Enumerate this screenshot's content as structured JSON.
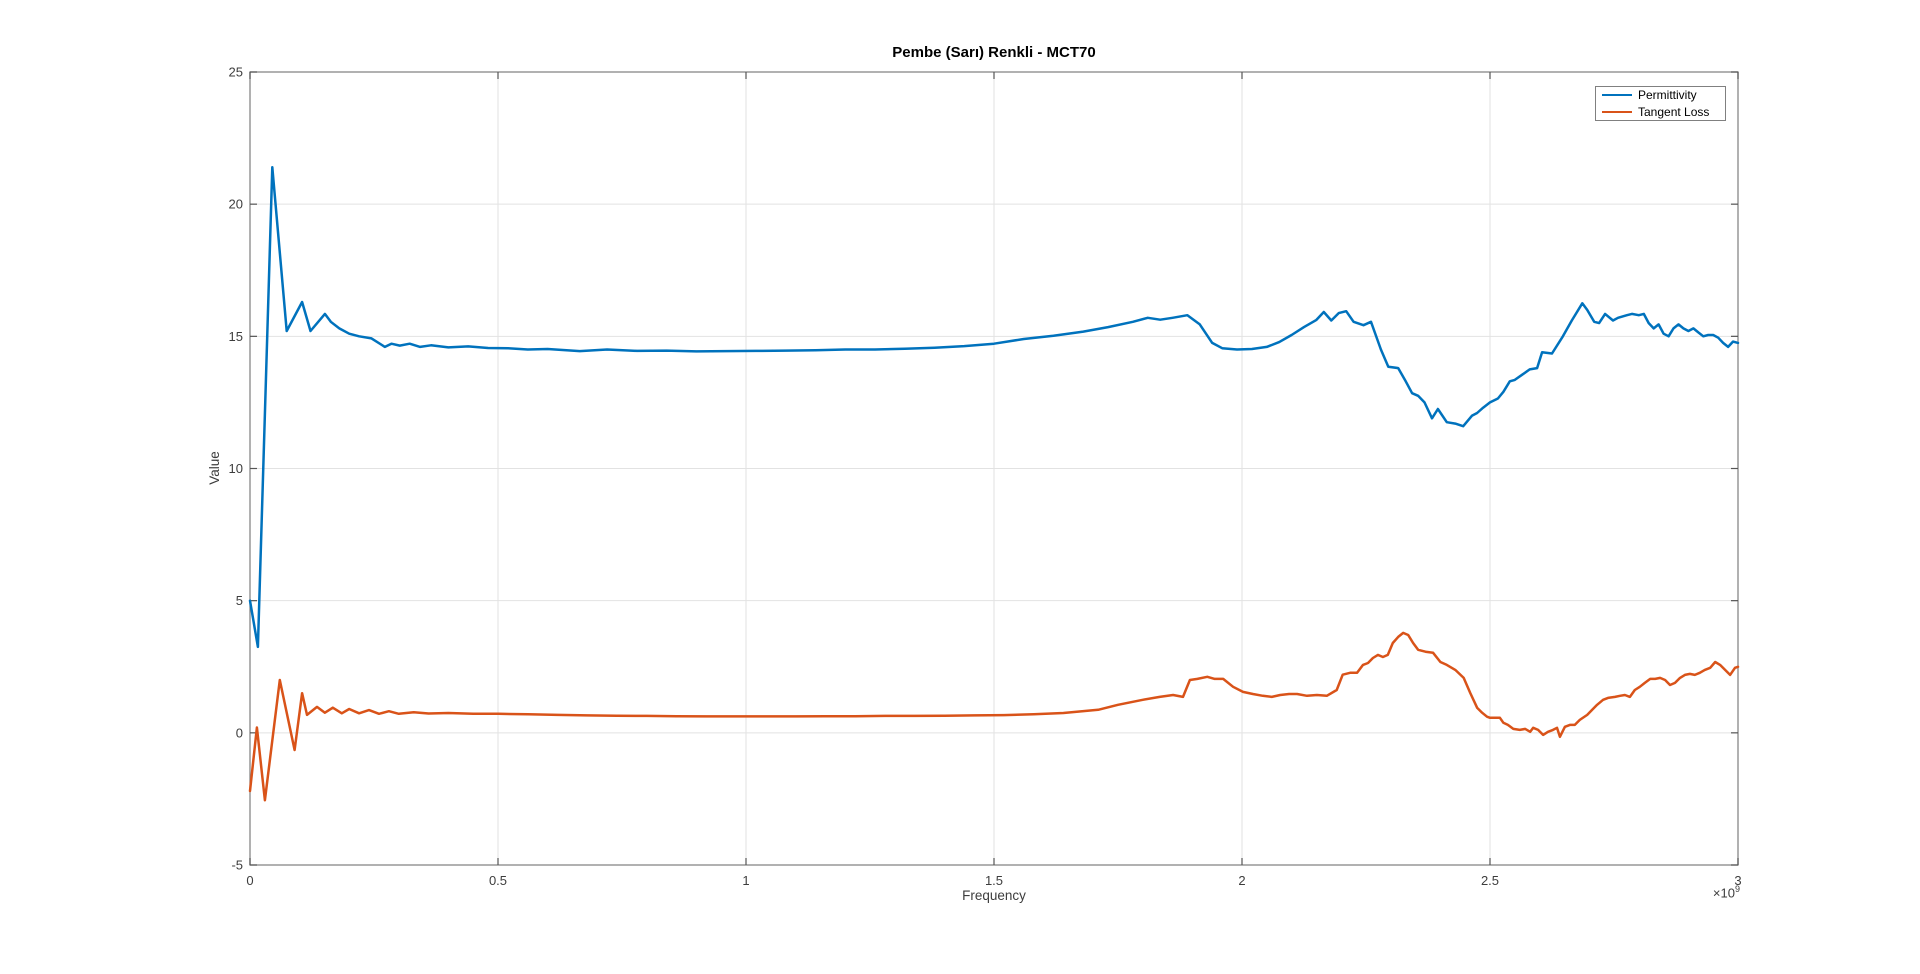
{
  "chart_data": {
    "type": "line",
    "title": "Pembe (Sarı) Renkli - MCT70",
    "xlabel": "Frequency",
    "ylabel": "Value",
    "x_offset": {
      "text": "×10",
      "exp": "9"
    },
    "xlim": [
      0,
      3
    ],
    "ylim": [
      -5,
      25
    ],
    "grid": true,
    "legend_position": "northeast",
    "x_ticks": {
      "values": [
        0,
        0.5,
        1,
        1.5,
        2,
        2.5,
        3
      ],
      "labels": [
        "0",
        "0.5",
        "1",
        "1.5",
        "2",
        "2.5",
        "3"
      ]
    },
    "y_ticks": {
      "values": [
        -5,
        0,
        5,
        10,
        15,
        20,
        25
      ],
      "labels": [
        "-5",
        "0",
        "5",
        "10",
        "15",
        "20",
        "25"
      ]
    },
    "series": [
      {
        "name": "Permittivity",
        "color": "#0072BD",
        "points": [
          [
            0.0,
            5.0
          ],
          [
            0.016,
            3.25
          ],
          [
            0.045,
            21.4
          ],
          [
            0.074,
            15.2
          ],
          [
            0.105,
            16.3
          ],
          [
            0.122,
            15.2
          ],
          [
            0.151,
            15.85
          ],
          [
            0.163,
            15.55
          ],
          [
            0.18,
            15.3
          ],
          [
            0.2,
            15.1
          ],
          [
            0.22,
            15.0
          ],
          [
            0.245,
            14.92
          ],
          [
            0.272,
            14.6
          ],
          [
            0.285,
            14.72
          ],
          [
            0.302,
            14.65
          ],
          [
            0.322,
            14.72
          ],
          [
            0.343,
            14.6
          ],
          [
            0.365,
            14.66
          ],
          [
            0.4,
            14.58
          ],
          [
            0.44,
            14.62
          ],
          [
            0.48,
            14.56
          ],
          [
            0.52,
            14.55
          ],
          [
            0.56,
            14.5
          ],
          [
            0.6,
            14.52
          ],
          [
            0.665,
            14.44
          ],
          [
            0.72,
            14.5
          ],
          [
            0.78,
            14.45
          ],
          [
            0.84,
            14.46
          ],
          [
            0.9,
            14.43
          ],
          [
            0.96,
            14.44
          ],
          [
            1.02,
            14.45
          ],
          [
            1.08,
            14.46
          ],
          [
            1.14,
            14.47
          ],
          [
            1.2,
            14.5
          ],
          [
            1.26,
            14.5
          ],
          [
            1.32,
            14.53
          ],
          [
            1.38,
            14.57
          ],
          [
            1.44,
            14.63
          ],
          [
            1.5,
            14.72
          ],
          [
            1.56,
            14.9
          ],
          [
            1.62,
            15.02
          ],
          [
            1.68,
            15.18
          ],
          [
            1.73,
            15.35
          ],
          [
            1.78,
            15.55
          ],
          [
            1.81,
            15.7
          ],
          [
            1.835,
            15.63
          ],
          [
            1.86,
            15.7
          ],
          [
            1.89,
            15.8
          ],
          [
            1.915,
            15.45
          ],
          [
            1.94,
            14.75
          ],
          [
            1.96,
            14.55
          ],
          [
            1.99,
            14.5
          ],
          [
            2.02,
            14.52
          ],
          [
            2.05,
            14.6
          ],
          [
            2.075,
            14.78
          ],
          [
            2.1,
            15.05
          ],
          [
            2.125,
            15.35
          ],
          [
            2.15,
            15.62
          ],
          [
            2.165,
            15.92
          ],
          [
            2.18,
            15.6
          ],
          [
            2.195,
            15.88
          ],
          [
            2.21,
            15.95
          ],
          [
            2.225,
            15.55
          ],
          [
            2.245,
            15.42
          ],
          [
            2.26,
            15.55
          ],
          [
            2.28,
            14.5
          ],
          [
            2.295,
            13.85
          ],
          [
            2.315,
            13.8
          ],
          [
            2.33,
            13.3
          ],
          [
            2.343,
            12.85
          ],
          [
            2.355,
            12.75
          ],
          [
            2.368,
            12.5
          ],
          [
            2.383,
            11.9
          ],
          [
            2.395,
            12.25
          ],
          [
            2.413,
            11.75
          ],
          [
            2.43,
            11.7
          ],
          [
            2.446,
            11.6
          ],
          [
            2.464,
            12.0
          ],
          [
            2.474,
            12.1
          ],
          [
            2.486,
            12.3
          ],
          [
            2.5,
            12.5
          ],
          [
            2.516,
            12.65
          ],
          [
            2.527,
            12.9
          ],
          [
            2.54,
            13.3
          ],
          [
            2.55,
            13.35
          ],
          [
            2.565,
            13.55
          ],
          [
            2.58,
            13.75
          ],
          [
            2.595,
            13.8
          ],
          [
            2.605,
            14.4
          ],
          [
            2.625,
            14.35
          ],
          [
            2.647,
            15.0
          ],
          [
            2.665,
            15.6
          ],
          [
            2.686,
            16.25
          ],
          [
            2.696,
            16.0
          ],
          [
            2.71,
            15.55
          ],
          [
            2.72,
            15.5
          ],
          [
            2.732,
            15.85
          ],
          [
            2.748,
            15.6
          ],
          [
            2.758,
            15.7
          ],
          [
            2.776,
            15.8
          ],
          [
            2.786,
            15.85
          ],
          [
            2.8,
            15.8
          ],
          [
            2.81,
            15.85
          ],
          [
            2.82,
            15.5
          ],
          [
            2.83,
            15.3
          ],
          [
            2.84,
            15.45
          ],
          [
            2.85,
            15.1
          ],
          [
            2.86,
            15.0
          ],
          [
            2.87,
            15.3
          ],
          [
            2.88,
            15.45
          ],
          [
            2.89,
            15.3
          ],
          [
            2.9,
            15.2
          ],
          [
            2.91,
            15.3
          ],
          [
            2.92,
            15.15
          ],
          [
            2.93,
            15.0
          ],
          [
            2.94,
            15.05
          ],
          [
            2.95,
            15.05
          ],
          [
            2.96,
            14.95
          ],
          [
            2.97,
            14.75
          ],
          [
            2.98,
            14.6
          ],
          [
            2.99,
            14.8
          ],
          [
            3.0,
            14.75
          ]
        ]
      },
      {
        "name": "Tangent Loss",
        "color": "#D95319",
        "points": [
          [
            0.0,
            -2.2
          ],
          [
            0.014,
            0.2
          ],
          [
            0.03,
            -2.55
          ],
          [
            0.06,
            2.0
          ],
          [
            0.09,
            -0.65
          ],
          [
            0.105,
            1.5
          ],
          [
            0.115,
            0.68
          ],
          [
            0.135,
            0.98
          ],
          [
            0.151,
            0.76
          ],
          [
            0.167,
            0.95
          ],
          [
            0.185,
            0.74
          ],
          [
            0.2,
            0.9
          ],
          [
            0.22,
            0.74
          ],
          [
            0.24,
            0.86
          ],
          [
            0.26,
            0.72
          ],
          [
            0.28,
            0.82
          ],
          [
            0.3,
            0.72
          ],
          [
            0.33,
            0.78
          ],
          [
            0.36,
            0.73
          ],
          [
            0.4,
            0.75
          ],
          [
            0.45,
            0.72
          ],
          [
            0.5,
            0.72
          ],
          [
            0.56,
            0.7
          ],
          [
            0.62,
            0.68
          ],
          [
            0.68,
            0.66
          ],
          [
            0.74,
            0.65
          ],
          [
            0.8,
            0.64
          ],
          [
            0.86,
            0.63
          ],
          [
            0.92,
            0.62
          ],
          [
            0.98,
            0.62
          ],
          [
            1.04,
            0.62
          ],
          [
            1.1,
            0.62
          ],
          [
            1.16,
            0.63
          ],
          [
            1.22,
            0.63
          ],
          [
            1.28,
            0.64
          ],
          [
            1.34,
            0.64
          ],
          [
            1.4,
            0.65
          ],
          [
            1.46,
            0.66
          ],
          [
            1.52,
            0.67
          ],
          [
            1.58,
            0.7
          ],
          [
            1.64,
            0.75
          ],
          [
            1.71,
            0.87
          ],
          [
            1.75,
            1.06
          ],
          [
            1.8,
            1.25
          ],
          [
            1.834,
            1.36
          ],
          [
            1.861,
            1.43
          ],
          [
            1.881,
            1.36
          ],
          [
            1.895,
            2.0
          ],
          [
            1.91,
            2.04
          ],
          [
            1.93,
            2.12
          ],
          [
            1.945,
            2.04
          ],
          [
            1.962,
            2.04
          ],
          [
            1.982,
            1.74
          ],
          [
            2.002,
            1.55
          ],
          [
            2.022,
            1.47
          ],
          [
            2.042,
            1.4
          ],
          [
            2.06,
            1.36
          ],
          [
            2.077,
            1.43
          ],
          [
            2.095,
            1.47
          ],
          [
            2.111,
            1.47
          ],
          [
            2.131,
            1.4
          ],
          [
            2.151,
            1.43
          ],
          [
            2.171,
            1.4
          ],
          [
            2.191,
            1.62
          ],
          [
            2.203,
            2.2
          ],
          [
            2.218,
            2.27
          ],
          [
            2.232,
            2.27
          ],
          [
            2.244,
            2.57
          ],
          [
            2.254,
            2.64
          ],
          [
            2.264,
            2.83
          ],
          [
            2.274,
            2.95
          ],
          [
            2.284,
            2.87
          ],
          [
            2.294,
            2.95
          ],
          [
            2.304,
            3.4
          ],
          [
            2.315,
            3.63
          ],
          [
            2.325,
            3.78
          ],
          [
            2.335,
            3.7
          ],
          [
            2.345,
            3.4
          ],
          [
            2.355,
            3.14
          ],
          [
            2.37,
            3.07
          ],
          [
            2.385,
            3.03
          ],
          [
            2.4,
            2.68
          ],
          [
            2.413,
            2.57
          ],
          [
            2.43,
            2.38
          ],
          [
            2.447,
            2.08
          ],
          [
            2.46,
            1.51
          ],
          [
            2.474,
            0.95
          ],
          [
            2.484,
            0.76
          ],
          [
            2.494,
            0.61
          ],
          [
            2.5,
            0.57
          ],
          [
            2.52,
            0.57
          ],
          [
            2.527,
            0.38
          ],
          [
            2.536,
            0.3
          ],
          [
            2.547,
            0.15
          ],
          [
            2.56,
            0.11
          ],
          [
            2.571,
            0.15
          ],
          [
            2.581,
            0.04
          ],
          [
            2.587,
            0.19
          ],
          [
            2.597,
            0.11
          ],
          [
            2.607,
            -0.08
          ],
          [
            2.617,
            0.04
          ],
          [
            2.627,
            0.11
          ],
          [
            2.635,
            0.19
          ],
          [
            2.641,
            -0.15
          ],
          [
            2.651,
            0.23
          ],
          [
            2.661,
            0.3
          ],
          [
            2.671,
            0.3
          ],
          [
            2.681,
            0.49
          ],
          [
            2.696,
            0.68
          ],
          [
            2.706,
            0.87
          ],
          [
            2.716,
            1.06
          ],
          [
            2.728,
            1.25
          ],
          [
            2.738,
            1.32
          ],
          [
            2.752,
            1.36
          ],
          [
            2.762,
            1.4
          ],
          [
            2.772,
            1.43
          ],
          [
            2.782,
            1.36
          ],
          [
            2.792,
            1.62
          ],
          [
            2.802,
            1.74
          ],
          [
            2.812,
            1.89
          ],
          [
            2.823,
            2.04
          ],
          [
            2.833,
            2.04
          ],
          [
            2.843,
            2.08
          ],
          [
            2.853,
            2.0
          ],
          [
            2.863,
            1.81
          ],
          [
            2.873,
            1.89
          ],
          [
            2.883,
            2.08
          ],
          [
            2.893,
            2.19
          ],
          [
            2.903,
            2.23
          ],
          [
            2.913,
            2.19
          ],
          [
            2.923,
            2.27
          ],
          [
            2.933,
            2.38
          ],
          [
            2.944,
            2.46
          ],
          [
            2.954,
            2.68
          ],
          [
            2.964,
            2.57
          ],
          [
            2.974,
            2.38
          ],
          [
            2.984,
            2.19
          ],
          [
            2.994,
            2.46
          ],
          [
            3.0,
            2.5
          ]
        ]
      }
    ]
  }
}
